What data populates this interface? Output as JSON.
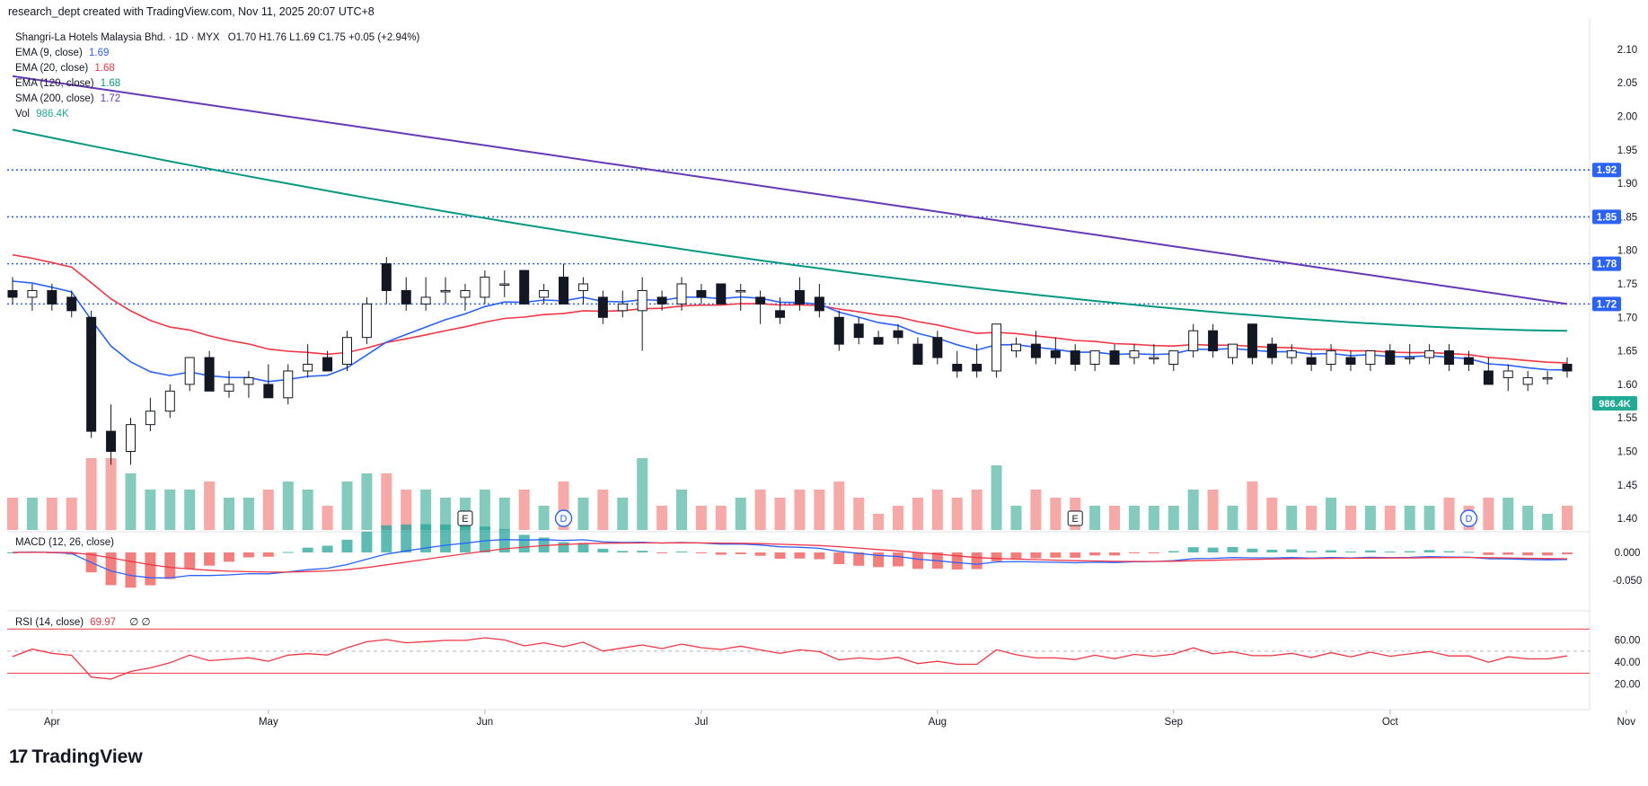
{
  "header": {
    "attribution": "research_dept created with TradingView.com, Nov 11, 2025 20:07 UTC+8"
  },
  "symbol": {
    "name": "Shangri-La Hotels Malaysia Bhd.",
    "interval": "1D",
    "exchange": "MYX",
    "ohlc_text": "O1.70 H1.76 L1.69 C1.75 +0.05 (+2.94%)"
  },
  "indicators": [
    {
      "label": "EMA (9, close)",
      "value": "1.69",
      "color": "#2962ff"
    },
    {
      "label": "EMA (20, close)",
      "value": "1.68",
      "color": "#f23645"
    },
    {
      "label": "EMA (120, close)",
      "value": "1.68",
      "color": "#089981"
    },
    {
      "label": "SMA (200, close)",
      "value": "1.72",
      "color": "#673ab7"
    },
    {
      "label": "Vol",
      "value": "986.4K",
      "color": "#22ab94"
    }
  ],
  "macd": {
    "label": "MACD (12, 26, close)"
  },
  "rsi": {
    "label": "RSI (14, close)",
    "value": "69.97",
    "extra": "∅ ∅"
  },
  "brand": "TradingView",
  "chart_data": {
    "type": "candlestick",
    "price_axis": {
      "ticks": [
        2.1,
        2.05,
        2.0,
        1.95,
        1.9,
        1.85,
        1.8,
        1.75,
        1.7,
        1.65,
        1.6,
        1.55,
        1.5,
        1.45,
        1.4
      ],
      "ylim": [
        1.38,
        2.12
      ]
    },
    "time_axis": {
      "labels": [
        "Apr",
        "May",
        "Jun",
        "Jul",
        "Aug",
        "Sep",
        "Oct",
        "Nov"
      ],
      "label_positions_bar_index": [
        2,
        13,
        24,
        35,
        47,
        59,
        70,
        82
      ]
    },
    "horizontal_levels": [
      {
        "value": 1.92,
        "label": "1.92"
      },
      {
        "value": 1.85,
        "label": "1.85"
      },
      {
        "value": 1.78,
        "label": "1.78"
      },
      {
        "value": 1.72,
        "label": "1.72"
      }
    ],
    "volume_last_label": "986.4K",
    "events": [
      {
        "bar": 23,
        "letter": "E"
      },
      {
        "bar": 28,
        "letter": "D"
      },
      {
        "bar": 54,
        "letter": "E"
      },
      {
        "bar": 74,
        "letter": "D"
      }
    ],
    "candles": [
      [
        1.74,
        1.76,
        1.72,
        1.73
      ],
      [
        1.73,
        1.75,
        1.71,
        1.74
      ],
      [
        1.74,
        1.75,
        1.71,
        1.72
      ],
      [
        1.73,
        1.74,
        1.7,
        1.71
      ],
      [
        1.7,
        1.71,
        1.52,
        1.53
      ],
      [
        1.53,
        1.57,
        1.48,
        1.5
      ],
      [
        1.5,
        1.55,
        1.48,
        1.54
      ],
      [
        1.54,
        1.58,
        1.53,
        1.56
      ],
      [
        1.56,
        1.6,
        1.55,
        1.59
      ],
      [
        1.6,
        1.64,
        1.59,
        1.64
      ],
      [
        1.64,
        1.65,
        1.59,
        1.59
      ],
      [
        1.59,
        1.62,
        1.58,
        1.6
      ],
      [
        1.6,
        1.62,
        1.58,
        1.61
      ],
      [
        1.6,
        1.63,
        1.58,
        1.58
      ],
      [
        1.58,
        1.63,
        1.57,
        1.62
      ],
      [
        1.62,
        1.66,
        1.61,
        1.63
      ],
      [
        1.64,
        1.65,
        1.62,
        1.62
      ],
      [
        1.63,
        1.68,
        1.62,
        1.67
      ],
      [
        1.67,
        1.73,
        1.66,
        1.72
      ],
      [
        1.78,
        1.79,
        1.72,
        1.74
      ],
      [
        1.74,
        1.76,
        1.71,
        1.72
      ],
      [
        1.72,
        1.76,
        1.71,
        1.73
      ],
      [
        1.74,
        1.76,
        1.72,
        1.74
      ],
      [
        1.73,
        1.75,
        1.71,
        1.74
      ],
      [
        1.73,
        1.77,
        1.72,
        1.76
      ],
      [
        1.75,
        1.77,
        1.73,
        1.75
      ],
      [
        1.77,
        1.77,
        1.72,
        1.72
      ],
      [
        1.73,
        1.75,
        1.72,
        1.74
      ],
      [
        1.76,
        1.78,
        1.72,
        1.72
      ],
      [
        1.74,
        1.76,
        1.72,
        1.75
      ],
      [
        1.73,
        1.74,
        1.69,
        1.7
      ],
      [
        1.71,
        1.74,
        1.7,
        1.72
      ],
      [
        1.71,
        1.76,
        1.65,
        1.74
      ],
      [
        1.73,
        1.74,
        1.71,
        1.72
      ],
      [
        1.72,
        1.76,
        1.71,
        1.75
      ],
      [
        1.74,
        1.75,
        1.72,
        1.73
      ],
      [
        1.75,
        1.75,
        1.72,
        1.72
      ],
      [
        1.74,
        1.75,
        1.71,
        1.74
      ],
      [
        1.73,
        1.74,
        1.69,
        1.72
      ],
      [
        1.71,
        1.73,
        1.69,
        1.7
      ],
      [
        1.74,
        1.76,
        1.71,
        1.72
      ],
      [
        1.73,
        1.75,
        1.7,
        1.71
      ],
      [
        1.7,
        1.71,
        1.65,
        1.66
      ],
      [
        1.69,
        1.7,
        1.66,
        1.67
      ],
      [
        1.67,
        1.68,
        1.66,
        1.66
      ],
      [
        1.68,
        1.69,
        1.66,
        1.67
      ],
      [
        1.66,
        1.67,
        1.63,
        1.63
      ],
      [
        1.67,
        1.68,
        1.63,
        1.64
      ],
      [
        1.63,
        1.65,
        1.61,
        1.62
      ],
      [
        1.63,
        1.66,
        1.61,
        1.62
      ],
      [
        1.62,
        1.69,
        1.61,
        1.69
      ],
      [
        1.65,
        1.67,
        1.64,
        1.66
      ],
      [
        1.66,
        1.68,
        1.63,
        1.64
      ],
      [
        1.65,
        1.67,
        1.63,
        1.64
      ],
      [
        1.65,
        1.66,
        1.62,
        1.63
      ],
      [
        1.63,
        1.65,
        1.62,
        1.65
      ],
      [
        1.65,
        1.66,
        1.63,
        1.63
      ],
      [
        1.64,
        1.66,
        1.63,
        1.65
      ],
      [
        1.64,
        1.66,
        1.63,
        1.64
      ],
      [
        1.63,
        1.65,
        1.62,
        1.65
      ],
      [
        1.65,
        1.69,
        1.64,
        1.68
      ],
      [
        1.68,
        1.69,
        1.64,
        1.65
      ],
      [
        1.64,
        1.66,
        1.63,
        1.66
      ],
      [
        1.69,
        1.69,
        1.63,
        1.64
      ],
      [
        1.66,
        1.67,
        1.63,
        1.64
      ],
      [
        1.64,
        1.66,
        1.63,
        1.65
      ],
      [
        1.64,
        1.65,
        1.62,
        1.63
      ],
      [
        1.63,
        1.66,
        1.62,
        1.65
      ],
      [
        1.64,
        1.65,
        1.62,
        1.63
      ],
      [
        1.63,
        1.65,
        1.62,
        1.65
      ],
      [
        1.65,
        1.66,
        1.63,
        1.63
      ],
      [
        1.64,
        1.66,
        1.63,
        1.64
      ],
      [
        1.64,
        1.66,
        1.63,
        1.65
      ],
      [
        1.65,
        1.66,
        1.62,
        1.63
      ],
      [
        1.64,
        1.65,
        1.62,
        1.63
      ],
      [
        1.62,
        1.64,
        1.6,
        1.6
      ],
      [
        1.61,
        1.63,
        1.59,
        1.62
      ],
      [
        1.6,
        1.62,
        1.59,
        1.61
      ],
      [
        1.61,
        1.62,
        1.6,
        1.61
      ],
      [
        1.63,
        1.64,
        1.61,
        1.62
      ]
    ]
  }
}
